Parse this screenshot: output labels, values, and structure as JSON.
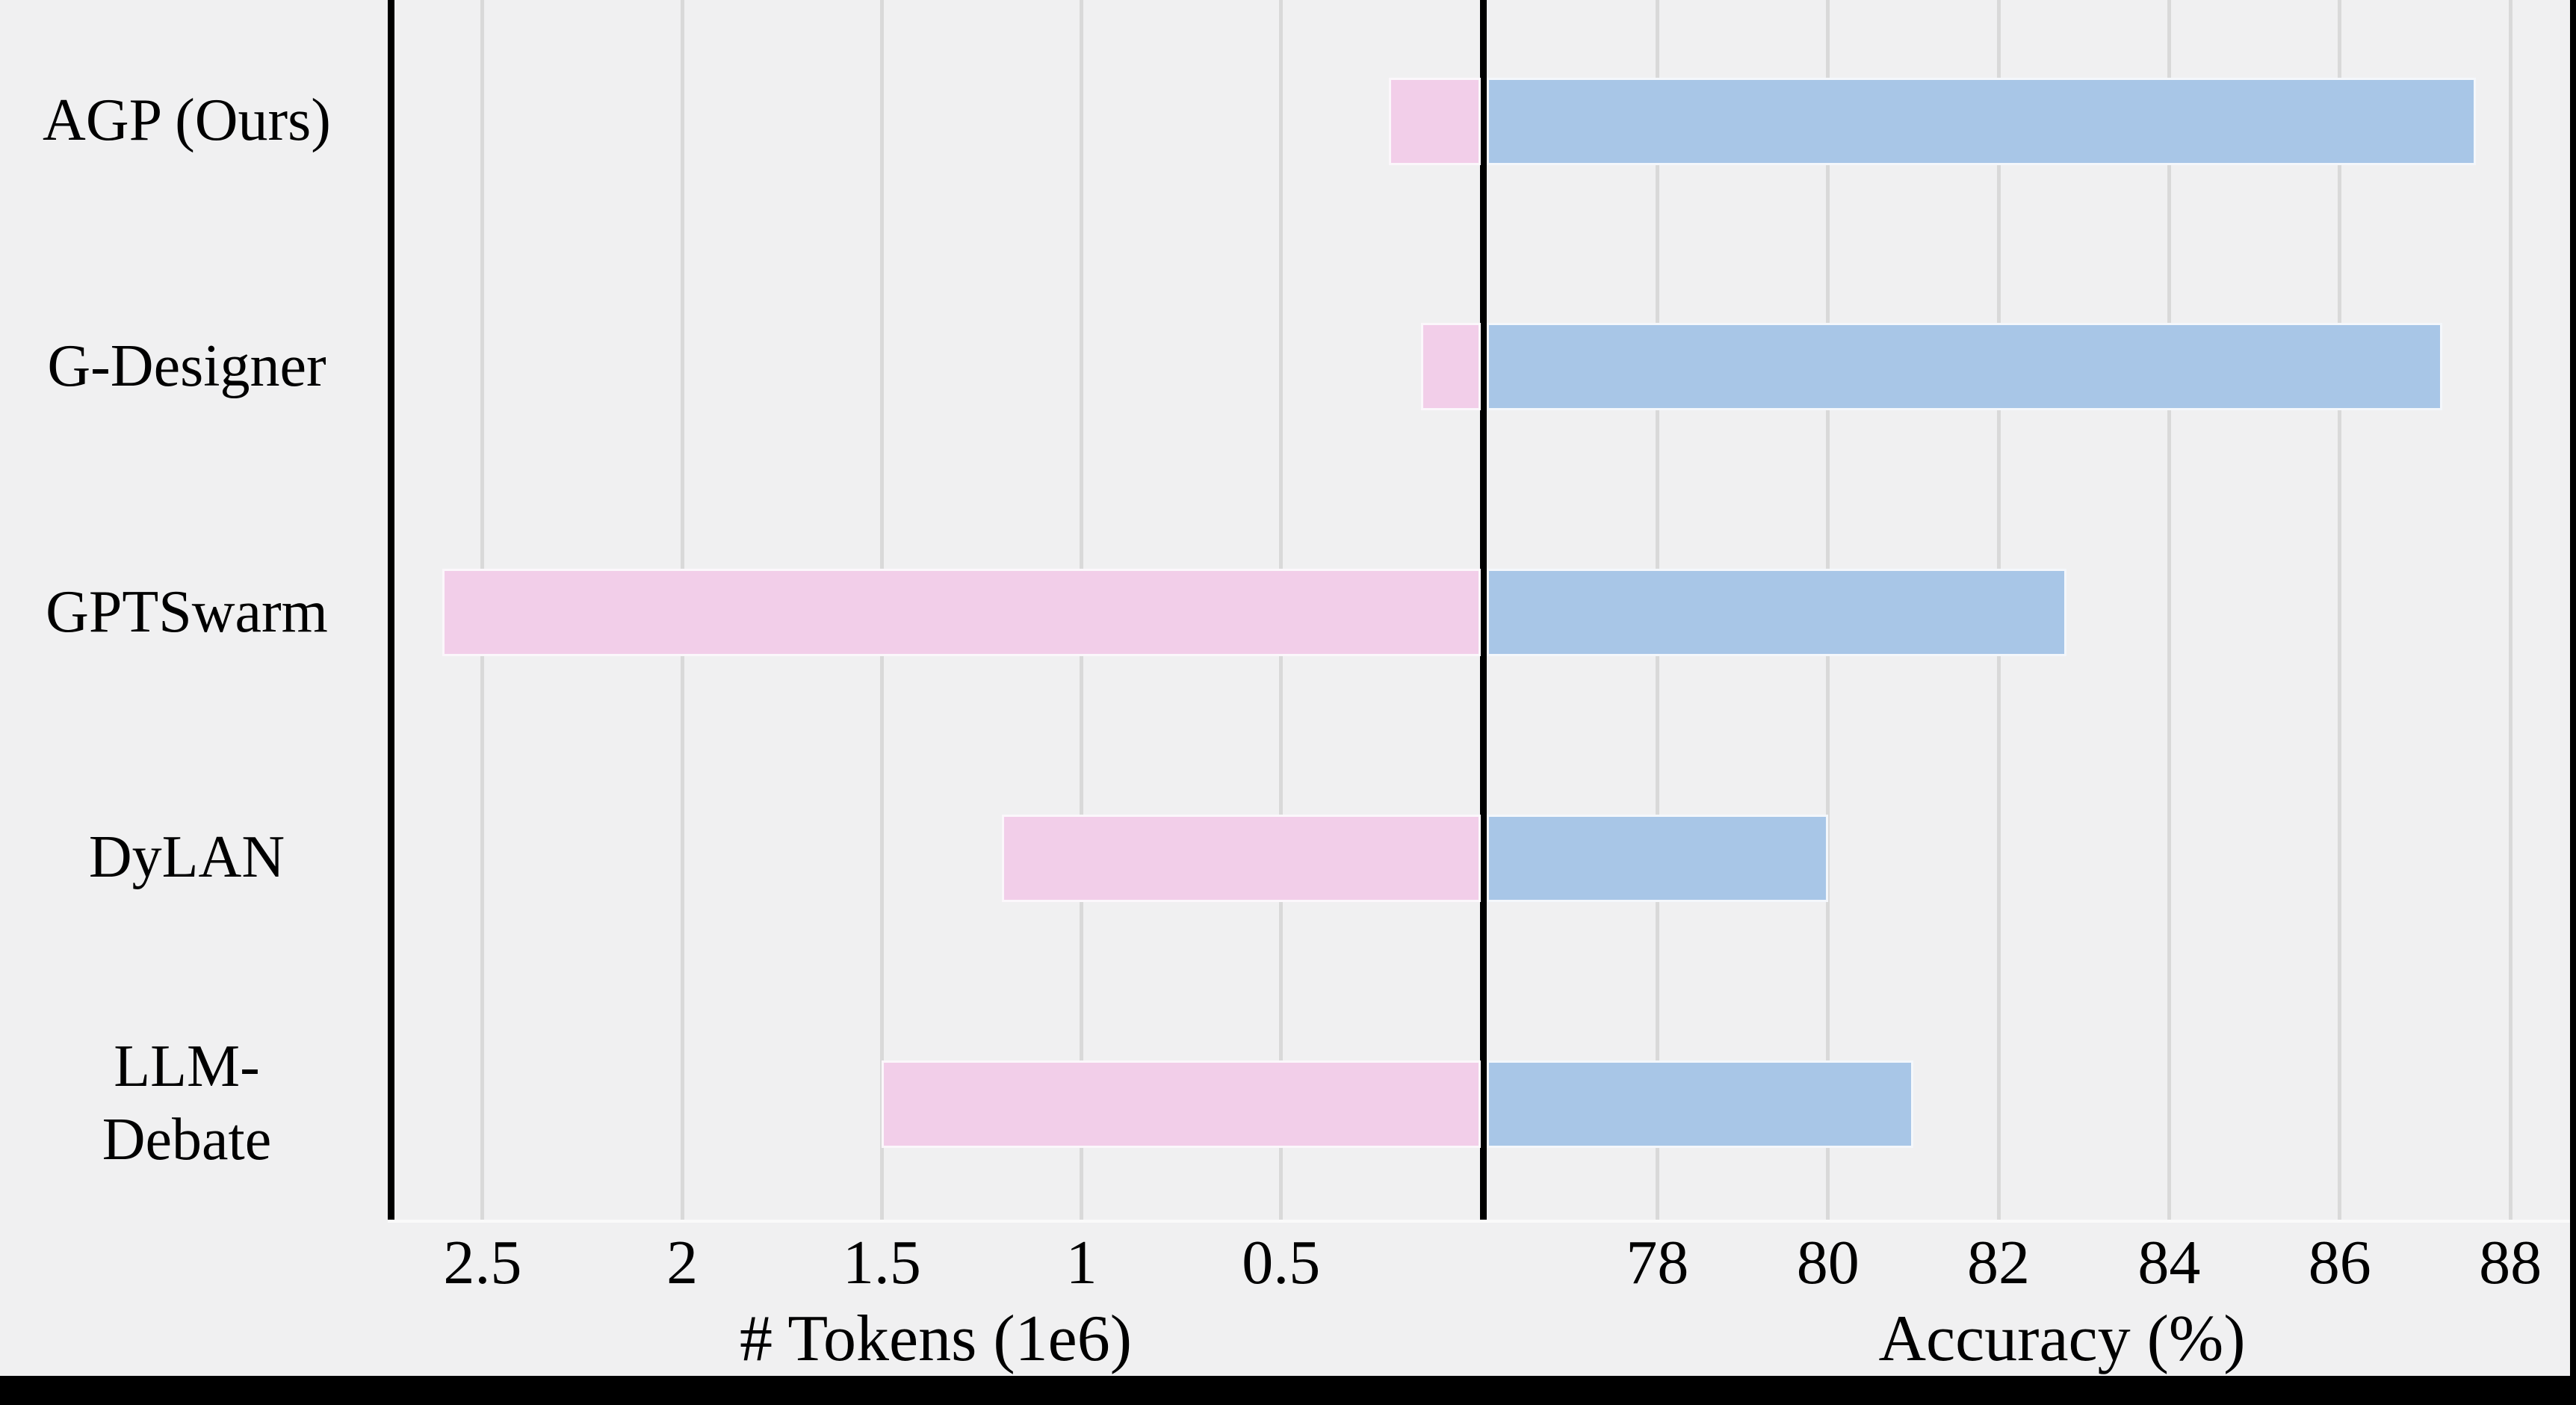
{
  "figure": {
    "background_color": "#f0f0f1",
    "frame_color": "#000000",
    "gridline_color": "#d9d9d9"
  },
  "chart_data": {
    "type": "bar",
    "orientation": "horizontal",
    "layout": "diverging-two-axes",
    "title": "",
    "grid": true,
    "legend": false,
    "categories": [
      "AGP (Ours)",
      "G-Designer",
      "GPTSwarm",
      "DyLAN",
      "LLM-\nDebate"
    ],
    "series": [
      {
        "name": "# Tokens (1e6)",
        "side": "left",
        "color": "#f2cee9",
        "values": [
          0.23,
          0.15,
          2.6,
          1.2,
          1.5
        ],
        "axis": {
          "label": "# Tokens (1e6)",
          "tick_labels": [
            "2.5",
            "2",
            "1.5",
            "1",
            "0.5"
          ],
          "tick_values": [
            2.5,
            2,
            1.5,
            1,
            0.5
          ],
          "min": 0,
          "max": 2.73,
          "inverted": true
        }
      },
      {
        "name": "Accuracy (%)",
        "side": "right",
        "color": "#a8c6e7",
        "values": [
          87.6,
          87.2,
          82.8,
          80.0,
          81.0
        ],
        "axis": {
          "label": "Accuracy (%)",
          "tick_labels": [
            "78",
            "80",
            "82",
            "84",
            "86",
            "88"
          ],
          "tick_values": [
            78,
            80,
            82,
            84,
            86,
            88
          ],
          "min": 76,
          "max": 88.7
        }
      }
    ]
  }
}
